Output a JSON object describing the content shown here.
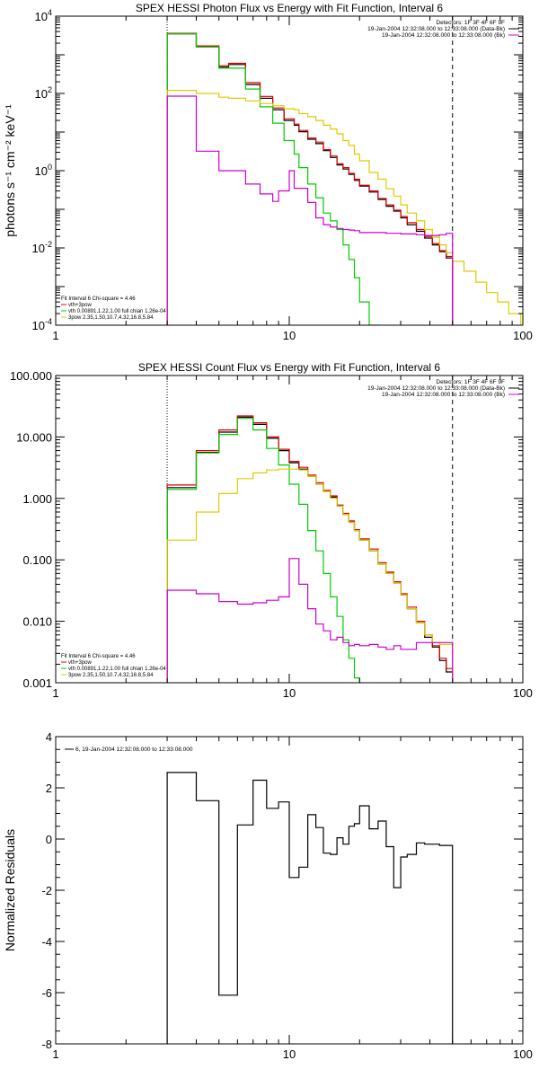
{
  "chart_data": [
    {
      "type": "line",
      "title": "SPEX HESSI Photon Flux vs Energy with Fit Function, Interval 6",
      "xlabel": "",
      "ylabel": "photons s⁻¹ cm⁻² keV⁻¹",
      "xscale": "log",
      "yscale": "log",
      "xlim": [
        1,
        100
      ],
      "ylim": [
        0.0001,
        10000
      ],
      "x_ticks": [
        1,
        10,
        100
      ],
      "x_tick_labels": [
        "1",
        "10",
        "100"
      ],
      "y_ticks": [
        0.0001,
        0.01,
        1,
        100,
        10000
      ],
      "y_tick_labels": [
        "10⁻⁴",
        "10⁻²",
        "10⁰",
        "10²",
        "10⁴"
      ],
      "legend_top_right": [
        {
          "text": "Detectors: 1F 3F 4F 6F 9F",
          "color": "#000000"
        },
        {
          "text": "19-Jan-2004 12:32:08.000 to 12:33:08.000 (Data-Bk)",
          "color": "#000000"
        },
        {
          "text": "19-Jan-2004 12:32:08.000 to 12:33:08.000 (Bk)",
          "color": "#cc00cc"
        }
      ],
      "legend_bottom_left": [
        {
          "text": "Fit Interval 6    Chi-square = 4.46",
          "color": "#000000"
        },
        {
          "text": "vth+3pow",
          "color": "#dd0000"
        },
        {
          "text": "vth 0.00891,1.22,1.00  full chian 1.26e-04",
          "color": "#00cc00"
        },
        {
          "text": "3pow 2.35,1.50,10.7,4.32,16.8,5.84",
          "color": "#dccc00"
        }
      ],
      "vlines": [
        {
          "x": 3,
          "style": "dotted"
        },
        {
          "x": 50,
          "style": "dashed"
        }
      ],
      "bin_edges": [
        3,
        3.5,
        4,
        4.5,
        5,
        5.5,
        6,
        6.5,
        7,
        7.5,
        8,
        8.5,
        9,
        9.5,
        10,
        10.5,
        11,
        12,
        13,
        14,
        15,
        16,
        17,
        18,
        19,
        20,
        22,
        24,
        26,
        28,
        30,
        32,
        35,
        38,
        41,
        44,
        47,
        50,
        56,
        63,
        70,
        78,
        87,
        98
      ],
      "series": [
        {
          "name": "Data-Bk",
          "color": "#000000",
          "values": [
            3500,
            3500,
            1600,
            1600,
            480,
            560,
            560,
            170,
            170,
            75,
            75,
            38,
            38,
            20,
            20,
            15,
            10.2,
            6.5,
            5,
            3.3,
            2.2,
            1.4,
            1.1,
            0.8,
            0.56,
            0.4,
            0.28,
            0.18,
            0.12,
            0.09,
            0.06,
            0.04,
            0.027,
            0.018,
            0.012,
            0.008,
            0.0055,
            null,
            null,
            null,
            null,
            null,
            null
          ],
          "end": 50
        },
        {
          "name": "vth+3pow",
          "color": "#dd0000",
          "values": [
            3600,
            3600,
            1700,
            1700,
            520,
            600,
            600,
            190,
            190,
            84,
            84,
            42,
            42,
            22,
            22,
            16,
            11,
            7,
            5.5,
            3.5,
            2.4,
            1.5,
            1.2,
            0.85,
            0.6,
            0.42,
            0.3,
            0.19,
            0.13,
            0.095,
            0.065,
            0.045,
            0.03,
            0.02,
            0.013,
            0.0085,
            0.006,
            null,
            null,
            null,
            null,
            null,
            null
          ],
          "end": 50
        },
        {
          "name": "vth",
          "color": "#00cc00",
          "values": [
            3500,
            3500,
            1600,
            1600,
            450,
            450,
            450,
            130,
            130,
            45,
            45,
            17,
            17,
            6,
            6,
            2.7,
            1.2,
            0.45,
            0.2,
            0.08,
            0.05,
            0.03,
            0.012,
            0.005,
            0.0017,
            0.0004,
            0.0001,
            null,
            null,
            null,
            null,
            null,
            null,
            null,
            null,
            null,
            null,
            null,
            null,
            null,
            null,
            null,
            null
          ],
          "end": 23.8
        },
        {
          "name": "3pow",
          "color": "#dccc00",
          "values": [
            120,
            120,
            100,
            100,
            80,
            75,
            75,
            64,
            64,
            55,
            55,
            48,
            48,
            40,
            40,
            38,
            30,
            25,
            20,
            15,
            12,
            9,
            6,
            4.5,
            2.7,
            1.8,
            0.9,
            0.6,
            0.34,
            0.22,
            0.13,
            0.08,
            0.05,
            0.03,
            0.019,
            0.012,
            0.0075,
            0.0045,
            0.0025,
            0.0013,
            0.0007,
            0.0004,
            0.0002
          ],
          "end": 98
        },
        {
          "name": "Bk",
          "color": "#cc00cc",
          "values": [
            85,
            85,
            3.2,
            3.2,
            1.0,
            1.0,
            1.0,
            0.45,
            0.45,
            0.25,
            0.25,
            0.16,
            0.3,
            0.3,
            1.0,
            0.35,
            0.35,
            0.15,
            0.06,
            0.04,
            0.035,
            0.032,
            0.03,
            0.029,
            0.028,
            0.025,
            0.025,
            0.025,
            0.024,
            0.024,
            0.023,
            0.023,
            0.022,
            0.021,
            0.021,
            0.022,
            0.024,
            null,
            null,
            null,
            null,
            null,
            null
          ],
          "end": 50
        }
      ]
    },
    {
      "type": "line",
      "title": "SPEX HESSI Count Flux vs Energy with Fit Function, Interval 6",
      "xlabel": "",
      "ylabel": "",
      "xscale": "log",
      "yscale": "log",
      "xlim": [
        1,
        100
      ],
      "ylim": [
        0.001,
        100
      ],
      "x_ticks": [
        1,
        10,
        100
      ],
      "x_tick_labels": [
        "1",
        "10",
        "100"
      ],
      "y_ticks": [
        0.001,
        0.01,
        0.1,
        1,
        10,
        100
      ],
      "y_tick_labels": [
        "0.001",
        "0.010",
        "0.100",
        "1.000",
        "10.000",
        "100.000"
      ],
      "legend_top_right": [
        {
          "text": "Detectors: 1F 3F 4F 6F 9F",
          "color": "#000000"
        },
        {
          "text": "19-Jan-2004 12:32:08.000 to 12:33:08.000 (Data-Bk)",
          "color": "#000000"
        },
        {
          "text": "19-Jan-2004 12:32:08.000 to 12:33:08.000 (Bk)",
          "color": "#cc00cc"
        }
      ],
      "legend_bottom_left": [
        {
          "text": "Fit Interval 6    Chi-square = 4.46",
          "color": "#000000"
        },
        {
          "text": "vth+3pow",
          "color": "#dd0000"
        },
        {
          "text": "vth 0.00891,1.22,1.00  full chian 1.26e-04",
          "color": "#00cc00"
        },
        {
          "text": "3pow 2.35,1.50,10.7,4.32,16.8,5.84",
          "color": "#dccc00"
        }
      ],
      "vlines": [
        {
          "x": 3,
          "style": "dotted"
        },
        {
          "x": 50,
          "style": "dashed"
        }
      ],
      "bin_edges": [
        3,
        3.5,
        4,
        4.5,
        5,
        5.5,
        6,
        6.5,
        7,
        7.5,
        8,
        8.5,
        9,
        9.5,
        10,
        10.5,
        11,
        12,
        13,
        14,
        15,
        16,
        17,
        18,
        19,
        20,
        22,
        24,
        26,
        28,
        30,
        32,
        35,
        38,
        41,
        44,
        47,
        50,
        56
      ],
      "series": [
        {
          "name": "Data-Bk",
          "color": "#000000",
          "values": [
            1.5,
            1.5,
            5.6,
            5.6,
            12,
            12,
            21,
            21,
            16,
            16,
            9.5,
            9.5,
            6,
            6,
            3.8,
            3.8,
            3.0,
            2.3,
            1.7,
            1.3,
            1.05,
            0.75,
            0.55,
            0.41,
            0.3,
            0.21,
            0.14,
            0.085,
            0.06,
            0.042,
            0.027,
            0.016,
            0.0095,
            0.0055,
            0.0038,
            0.0023,
            0.0015,
            null
          ],
          "end": 50
        },
        {
          "name": "vth+3pow",
          "color": "#dd0000",
          "values": [
            1.65,
            1.65,
            6,
            6,
            13,
            13,
            22,
            22,
            17,
            17,
            10,
            10,
            6.3,
            6.3,
            4,
            4,
            3.2,
            2.4,
            1.8,
            1.35,
            1.1,
            0.78,
            0.57,
            0.43,
            0.31,
            0.22,
            0.15,
            0.09,
            0.063,
            0.044,
            0.028,
            0.017,
            0.01,
            0.006,
            0.004,
            0.0025,
            0.0017,
            null
          ],
          "end": 50
        },
        {
          "name": "vth",
          "color": "#00cc00",
          "values": [
            1.4,
            1.4,
            5.5,
            5.5,
            11,
            11,
            20,
            20,
            13,
            13,
            6.5,
            6.5,
            3.5,
            3.5,
            1.7,
            1.7,
            0.8,
            0.3,
            0.14,
            0.06,
            0.025,
            0.012,
            0.005,
            0.0025,
            0.0012,
            null,
            null,
            null,
            null,
            null,
            null,
            null,
            null,
            null,
            null,
            null,
            null,
            null
          ],
          "end": 18
        },
        {
          "name": "3pow",
          "color": "#dccc00",
          "values": [
            0.21,
            0.21,
            0.6,
            0.6,
            1.2,
            1.2,
            2.1,
            2.1,
            2.6,
            2.6,
            2.9,
            2.9,
            3.0,
            3.0,
            3.0,
            3.0,
            2.9,
            2.3,
            1.7,
            1.3,
            1.0,
            0.75,
            0.55,
            0.41,
            0.3,
            0.21,
            0.14,
            0.085,
            0.06,
            0.042,
            0.027,
            0.016,
            0.0095,
            0.006,
            0.0045,
            0.0042,
            0.0042,
            0.0008
          ],
          "end": 56
        },
        {
          "name": "Bk",
          "color": "#cc00cc",
          "values": [
            0.032,
            0.032,
            0.028,
            0.028,
            0.021,
            0.021,
            0.019,
            0.019,
            0.02,
            0.02,
            0.022,
            0.022,
            0.025,
            0.025,
            0.105,
            0.105,
            0.04,
            0.016,
            0.009,
            0.007,
            0.005,
            0.0055,
            0.0045,
            0.004,
            0.0042,
            0.004,
            0.0042,
            0.0038,
            0.0035,
            0.004,
            0.0035,
            0.0035,
            0.0045,
            0.0045,
            0.0045,
            0.0045,
            0.0045,
            null
          ],
          "end": 50
        }
      ]
    },
    {
      "type": "line",
      "title": "",
      "xlabel": "",
      "ylabel": "Normalized Residuals",
      "xscale": "log",
      "yscale": "linear",
      "xlim": [
        1,
        100
      ],
      "ylim": [
        -8,
        4
      ],
      "x_ticks": [
        1,
        10,
        100
      ],
      "x_tick_labels": [
        "1",
        "10",
        "100"
      ],
      "y_ticks": [
        -8,
        -6,
        -4,
        -2,
        0,
        2,
        4
      ],
      "y_tick_labels": [
        "-8",
        "-6",
        "-4",
        "-2",
        "0",
        "2",
        "4"
      ],
      "legend_top_left": [
        {
          "text": "6, 19-Jan-2004 12:32:08.000 to 12:33:08.000",
          "color": "#000000"
        }
      ],
      "bin_edges": [
        3,
        4,
        5,
        6,
        7,
        8,
        9,
        10,
        11,
        12,
        13,
        14,
        15,
        16,
        17,
        18,
        19,
        20,
        22,
        24,
        26,
        28,
        30,
        32,
        35,
        38,
        41,
        44,
        47,
        50
      ],
      "series": [
        {
          "name": "",
          "color": "#000000",
          "values": [
            2.6,
            1.5,
            -6.1,
            0.55,
            2.3,
            1.2,
            1.45,
            -1.5,
            -1.1,
            0.95,
            0.45,
            -0.55,
            -0.6,
            0.05,
            -0.2,
            0.5,
            0.6,
            1.3,
            0.4,
            0.7,
            -0.3,
            -1.9,
            -0.7,
            -0.6,
            -0.15,
            -0.2,
            -0.2,
            -0.25,
            -0.25
          ],
          "end": 50,
          "drop_to_bottom": true
        }
      ]
    }
  ]
}
